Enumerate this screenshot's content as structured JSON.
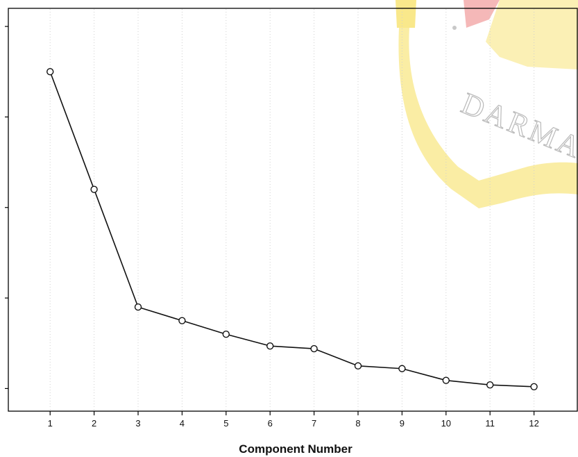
{
  "chart_data": {
    "type": "line",
    "title": "",
    "xlabel": "Component Number",
    "ylabel": "",
    "x": [
      1,
      2,
      3,
      4,
      5,
      6,
      7,
      8,
      9,
      10,
      11,
      12
    ],
    "values": [
      3.5,
      2.2,
      0.9,
      0.75,
      0.6,
      0.47,
      0.44,
      0.25,
      0.22,
      0.09,
      0.04,
      0.02
    ],
    "xlim": [
      0.05,
      13.0
    ],
    "ylim": [
      -0.25,
      4.2
    ],
    "grid": true,
    "legend": "none",
    "colors": {
      "line": "#111111",
      "marker": "#111111",
      "grid": "#cfcfcf",
      "axis": "#000000"
    }
  },
  "watermark": {
    "text": "DARMA PE",
    "colors": {
      "yellow": "#f6de5a",
      "red": "#f19a9a",
      "gray": "#c8c8c8"
    }
  }
}
